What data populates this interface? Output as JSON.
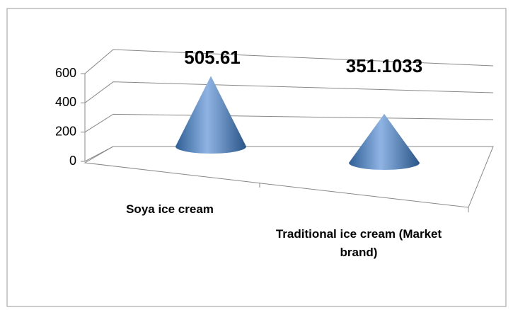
{
  "chart_data": {
    "type": "cone",
    "categories": [
      "Soya ice cream",
      "Traditional ice cream (Market brand)"
    ],
    "values": [
      505.61,
      351.1033
    ],
    "color": "#4f81bd",
    "ylim": [
      0,
      600
    ],
    "yticks": [
      0,
      200,
      400,
      600
    ],
    "grid": true
  }
}
